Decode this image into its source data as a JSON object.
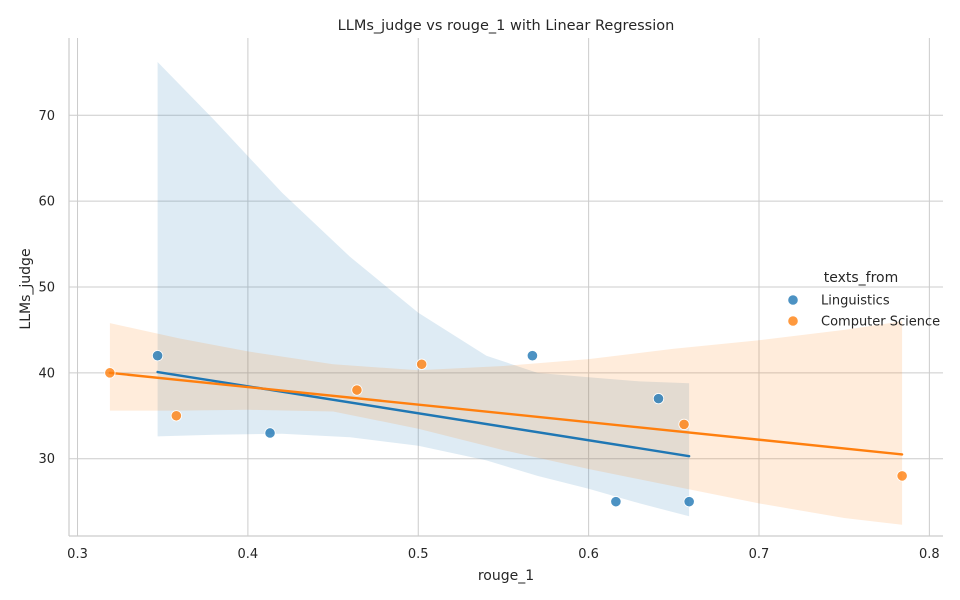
{
  "chart_data": {
    "type": "scatter",
    "title": "LLMs_judge vs rouge_1 with Linear Regression",
    "xlabel": "rouge_1",
    "ylabel": "LLMs_judge",
    "xlim": [
      0.295,
      0.808
    ],
    "ylim": [
      21,
      79
    ],
    "xticks": [
      0.3,
      0.4,
      0.5,
      0.6,
      0.7,
      0.8
    ],
    "xtick_labels": [
      "0.3",
      "0.4",
      "0.5",
      "0.6",
      "0.7",
      "0.8"
    ],
    "yticks": [
      30,
      40,
      50,
      60,
      70
    ],
    "ytick_labels": [
      "30",
      "40",
      "50",
      "60",
      "70"
    ],
    "grid": true,
    "legend": {
      "title": "texts_from",
      "placement": "right"
    },
    "series": [
      {
        "name": "Linguistics",
        "color": "#1f77b4",
        "x": [
          0.347,
          0.413,
          0.567,
          0.616,
          0.641,
          0.659
        ],
        "y": [
          42,
          33,
          42,
          25,
          37,
          25
        ],
        "regression": {
          "x": [
            0.347,
            0.659
          ],
          "y": [
            40.1,
            30.3
          ]
        },
        "confidence_band": {
          "x": [
            0.347,
            0.38,
            0.42,
            0.46,
            0.5,
            0.54,
            0.57,
            0.6,
            0.63,
            0.659
          ],
          "upper": [
            76.2,
            69.5,
            61.0,
            53.5,
            47.0,
            42.0,
            40.0,
            39.5,
            39.0,
            38.8
          ],
          "lower": [
            32.6,
            32.8,
            32.9,
            32.5,
            31.5,
            29.8,
            28.0,
            26.5,
            24.8,
            23.3
          ]
        }
      },
      {
        "name": "Computer Science",
        "color": "#ff7f0e",
        "x": [
          0.319,
          0.358,
          0.464,
          0.502,
          0.656,
          0.784
        ],
        "y": [
          40,
          35,
          38,
          41,
          34,
          28
        ],
        "regression": {
          "x": [
            0.319,
            0.784
          ],
          "y": [
            40.0,
            30.5
          ]
        },
        "confidence_band": {
          "x": [
            0.319,
            0.36,
            0.4,
            0.45,
            0.5,
            0.55,
            0.6,
            0.65,
            0.7,
            0.75,
            0.784
          ],
          "upper": [
            45.8,
            44.0,
            42.5,
            41.0,
            40.3,
            40.8,
            41.6,
            42.8,
            43.8,
            45.0,
            46.0
          ],
          "lower": [
            35.6,
            35.6,
            35.7,
            35.5,
            33.5,
            31.0,
            28.8,
            26.8,
            24.8,
            23.1,
            22.3
          ]
        }
      }
    ]
  }
}
